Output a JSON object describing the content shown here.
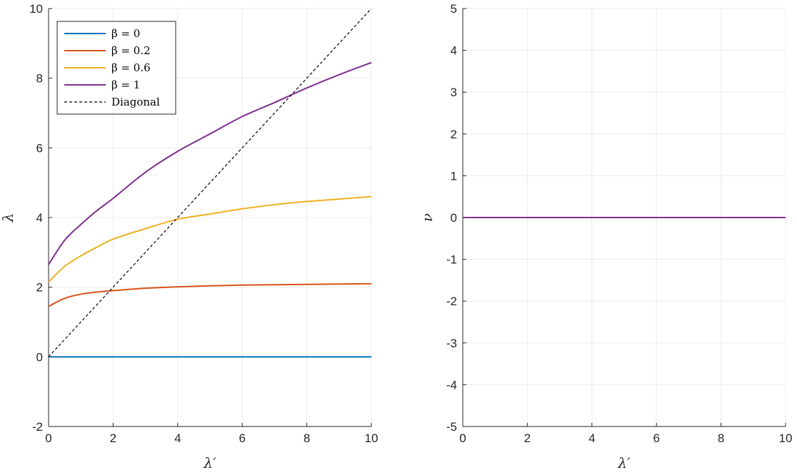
{
  "chart_data": [
    {
      "type": "line",
      "xlabel": "λ′",
      "ylabel": "λ",
      "xlim": [
        0,
        10
      ],
      "ylim": [
        -2,
        10
      ],
      "xticks": [
        "0",
        "2",
        "4",
        "6",
        "8",
        "10"
      ],
      "yticks": [
        "-2",
        "0",
        "2",
        "4",
        "6",
        "8",
        "10"
      ],
      "grid": true,
      "legend_position": "top-left",
      "series": [
        {
          "name": "β = 0",
          "color": "#0072BD",
          "style": "solid",
          "x": [
            0,
            1,
            2,
            3,
            4,
            5,
            6,
            7,
            8,
            9,
            10
          ],
          "y": [
            0,
            0,
            0,
            0,
            0,
            0,
            0,
            0,
            0,
            0,
            0
          ]
        },
        {
          "name": "β = 0.2",
          "color": "#D95319",
          "style": "solid",
          "x": [
            0,
            0.5,
            1,
            1.5,
            2,
            3,
            4,
            5,
            6,
            7,
            8,
            9,
            10
          ],
          "y": [
            1.45,
            1.68,
            1.8,
            1.86,
            1.9,
            1.97,
            2.01,
            2.04,
            2.06,
            2.07,
            2.08,
            2.09,
            2.1
          ]
        },
        {
          "name": "β = 0.6",
          "color": "#EDB120",
          "style": "solid",
          "x": [
            0,
            0.5,
            1,
            1.5,
            2,
            3,
            4,
            5,
            6,
            7,
            8,
            9,
            10
          ],
          "y": [
            2.15,
            2.6,
            2.9,
            3.15,
            3.38,
            3.68,
            3.95,
            4.1,
            4.25,
            4.37,
            4.46,
            4.53,
            4.6
          ]
        },
        {
          "name": "β = 1",
          "color": "#7E2F8E",
          "style": "solid",
          "x": [
            0,
            0.5,
            1,
            1.5,
            2,
            3,
            4,
            5,
            6,
            7,
            8,
            9,
            10
          ],
          "y": [
            2.65,
            3.35,
            3.8,
            4.2,
            4.55,
            5.3,
            5.9,
            6.4,
            6.9,
            7.3,
            7.72,
            8.1,
            8.45
          ]
        },
        {
          "name": "Diagonal",
          "color": "#000000",
          "style": "dashed",
          "x": [
            0,
            10
          ],
          "y": [
            0,
            10
          ]
        }
      ]
    },
    {
      "type": "line",
      "xlabel": "λ′",
      "ylabel": "ν",
      "xlim": [
        0,
        10
      ],
      "ylim": [
        -5,
        5
      ],
      "xticks": [
        "0",
        "2",
        "4",
        "6",
        "8",
        "10"
      ],
      "yticks": [
        "-5",
        "-4",
        "-3",
        "-2",
        "-1",
        "0",
        "1",
        "2",
        "3",
        "4",
        "5"
      ],
      "grid": true,
      "series": [
        {
          "color": "#7E2F8E",
          "style": "solid",
          "x": [
            0,
            10
          ],
          "y": [
            0,
            0
          ]
        }
      ]
    }
  ]
}
